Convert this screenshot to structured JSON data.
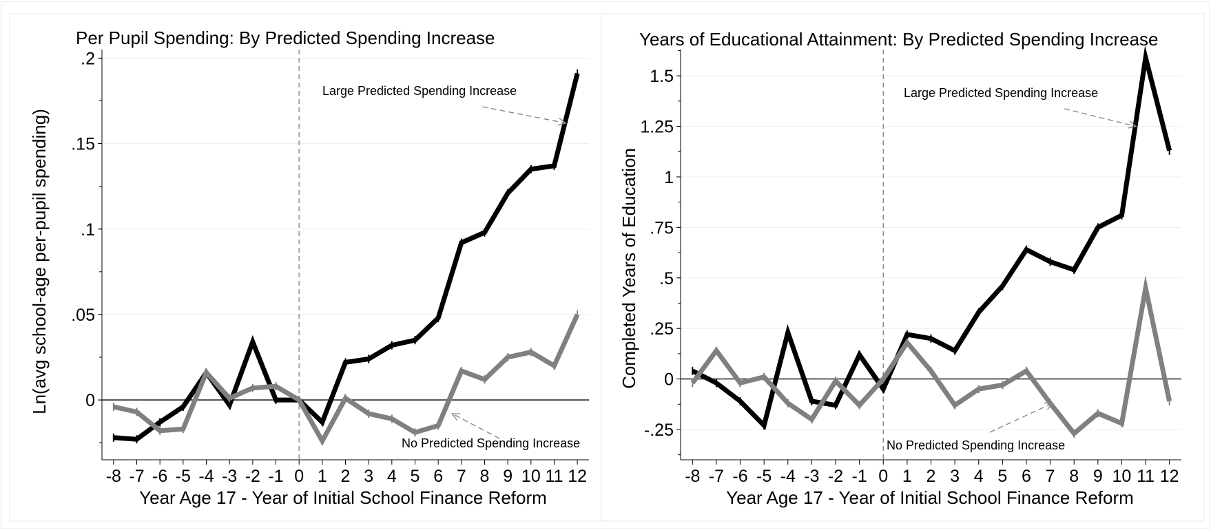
{
  "chart_data": [
    {
      "type": "line",
      "title": "Per Pupil Spending: By Predicted Spending Increase",
      "xlabel": "Year Age 17 - Year of Initial School Finance Reform",
      "ylabel": "Ln(avg school-age per-pupil spending)",
      "x": [
        -8,
        -7,
        -6,
        -5,
        -4,
        -3,
        -2,
        -1,
        0,
        1,
        2,
        3,
        4,
        5,
        6,
        7,
        8,
        9,
        10,
        11,
        12
      ],
      "xticks": [
        "-8",
        "-7",
        "-6",
        "-5",
        "-4",
        "-3",
        "-2",
        "-1",
        "0",
        "1",
        "2",
        "3",
        "4",
        "5",
        "6",
        "7",
        "8",
        "9",
        "10",
        "11",
        "12"
      ],
      "yticks": [
        0,
        0.05,
        0.1,
        0.15,
        0.2
      ],
      "yticklabels": [
        "0",
        ".05",
        ".1",
        ".15",
        ".2"
      ],
      "ylim": [
        -0.035,
        0.205
      ],
      "xlim": [
        -8.5,
        12.5
      ],
      "grid": true,
      "series": [
        {
          "name": "Large Predicted Spending Increase",
          "color": "#000000",
          "values": [
            -0.022,
            -0.023,
            -0.013,
            -0.004,
            0.016,
            -0.003,
            0.034,
            0.0,
            0.0,
            -0.013,
            0.022,
            0.024,
            0.032,
            0.035,
            0.048,
            0.092,
            0.098,
            0.121,
            0.135,
            0.137,
            0.191
          ]
        },
        {
          "name": "No Predicted Spending Increase",
          "color": "#808080",
          "values": [
            -0.004,
            -0.007,
            -0.018,
            -0.017,
            0.016,
            0.001,
            0.007,
            0.008,
            0.0,
            -0.024,
            0.001,
            -0.008,
            -0.011,
            -0.019,
            -0.015,
            0.017,
            0.012,
            0.025,
            0.028,
            0.02,
            0.05
          ]
        }
      ],
      "annotations": [
        {
          "text": "Large Predicted Spending Increase",
          "arrow_to": [
            11.5,
            0.162
          ]
        },
        {
          "text": "No Predicted Spending Increase",
          "arrow_to": [
            6.6,
            -0.008
          ]
        }
      ]
    },
    {
      "type": "line",
      "title": "Years of Educational Attainment: By Predicted Spending Increase",
      "xlabel": "Year Age 17 - Year of Initial School Finance Reform",
      "ylabel": "Completed Years of Education",
      "x": [
        -8,
        -7,
        -6,
        -5,
        -4,
        -3,
        -2,
        -1,
        0,
        1,
        2,
        3,
        4,
        5,
        6,
        7,
        8,
        9,
        10,
        11,
        12
      ],
      "xticks": [
        "-8",
        "-7",
        "-6",
        "-5",
        "-4",
        "-3",
        "-2",
        "-1",
        "0",
        "1",
        "2",
        "3",
        "4",
        "5",
        "6",
        "7",
        "8",
        "9",
        "10",
        "11",
        "12"
      ],
      "yticks": [
        -0.25,
        0,
        0.25,
        0.5,
        0.75,
        1,
        1.25,
        1.5
      ],
      "yticklabels": [
        "-.25",
        "0",
        ".25",
        ".5",
        ".75",
        "1",
        "1.25",
        "1.5"
      ],
      "ylim": [
        -0.4,
        1.63
      ],
      "xlim": [
        -8.5,
        12.5
      ],
      "grid": true,
      "series": [
        {
          "name": "Large Predicted Spending Increase",
          "color": "#000000",
          "values": [
            0.04,
            -0.02,
            -0.11,
            -0.23,
            0.23,
            -0.11,
            -0.13,
            0.12,
            -0.05,
            0.22,
            0.2,
            0.14,
            0.33,
            0.46,
            0.64,
            0.58,
            0.54,
            0.75,
            0.81,
            1.59,
            1.13
          ]
        },
        {
          "name": "No Predicted Spending Increase",
          "color": "#808080",
          "values": [
            -0.02,
            0.14,
            -0.02,
            0.01,
            -0.12,
            -0.2,
            -0.01,
            -0.13,
            0.0,
            0.18,
            0.04,
            -0.13,
            -0.05,
            -0.03,
            0.04,
            -0.12,
            -0.27,
            -0.17,
            -0.22,
            0.45,
            -0.11
          ]
        }
      ],
      "annotations": [
        {
          "text": "Large Predicted Spending Increase",
          "arrow_to": [
            10.6,
            1.25
          ]
        },
        {
          "text": "No Predicted Spending Increase",
          "arrow_to": [
            7.1,
            -0.12
          ]
        }
      ]
    }
  ]
}
